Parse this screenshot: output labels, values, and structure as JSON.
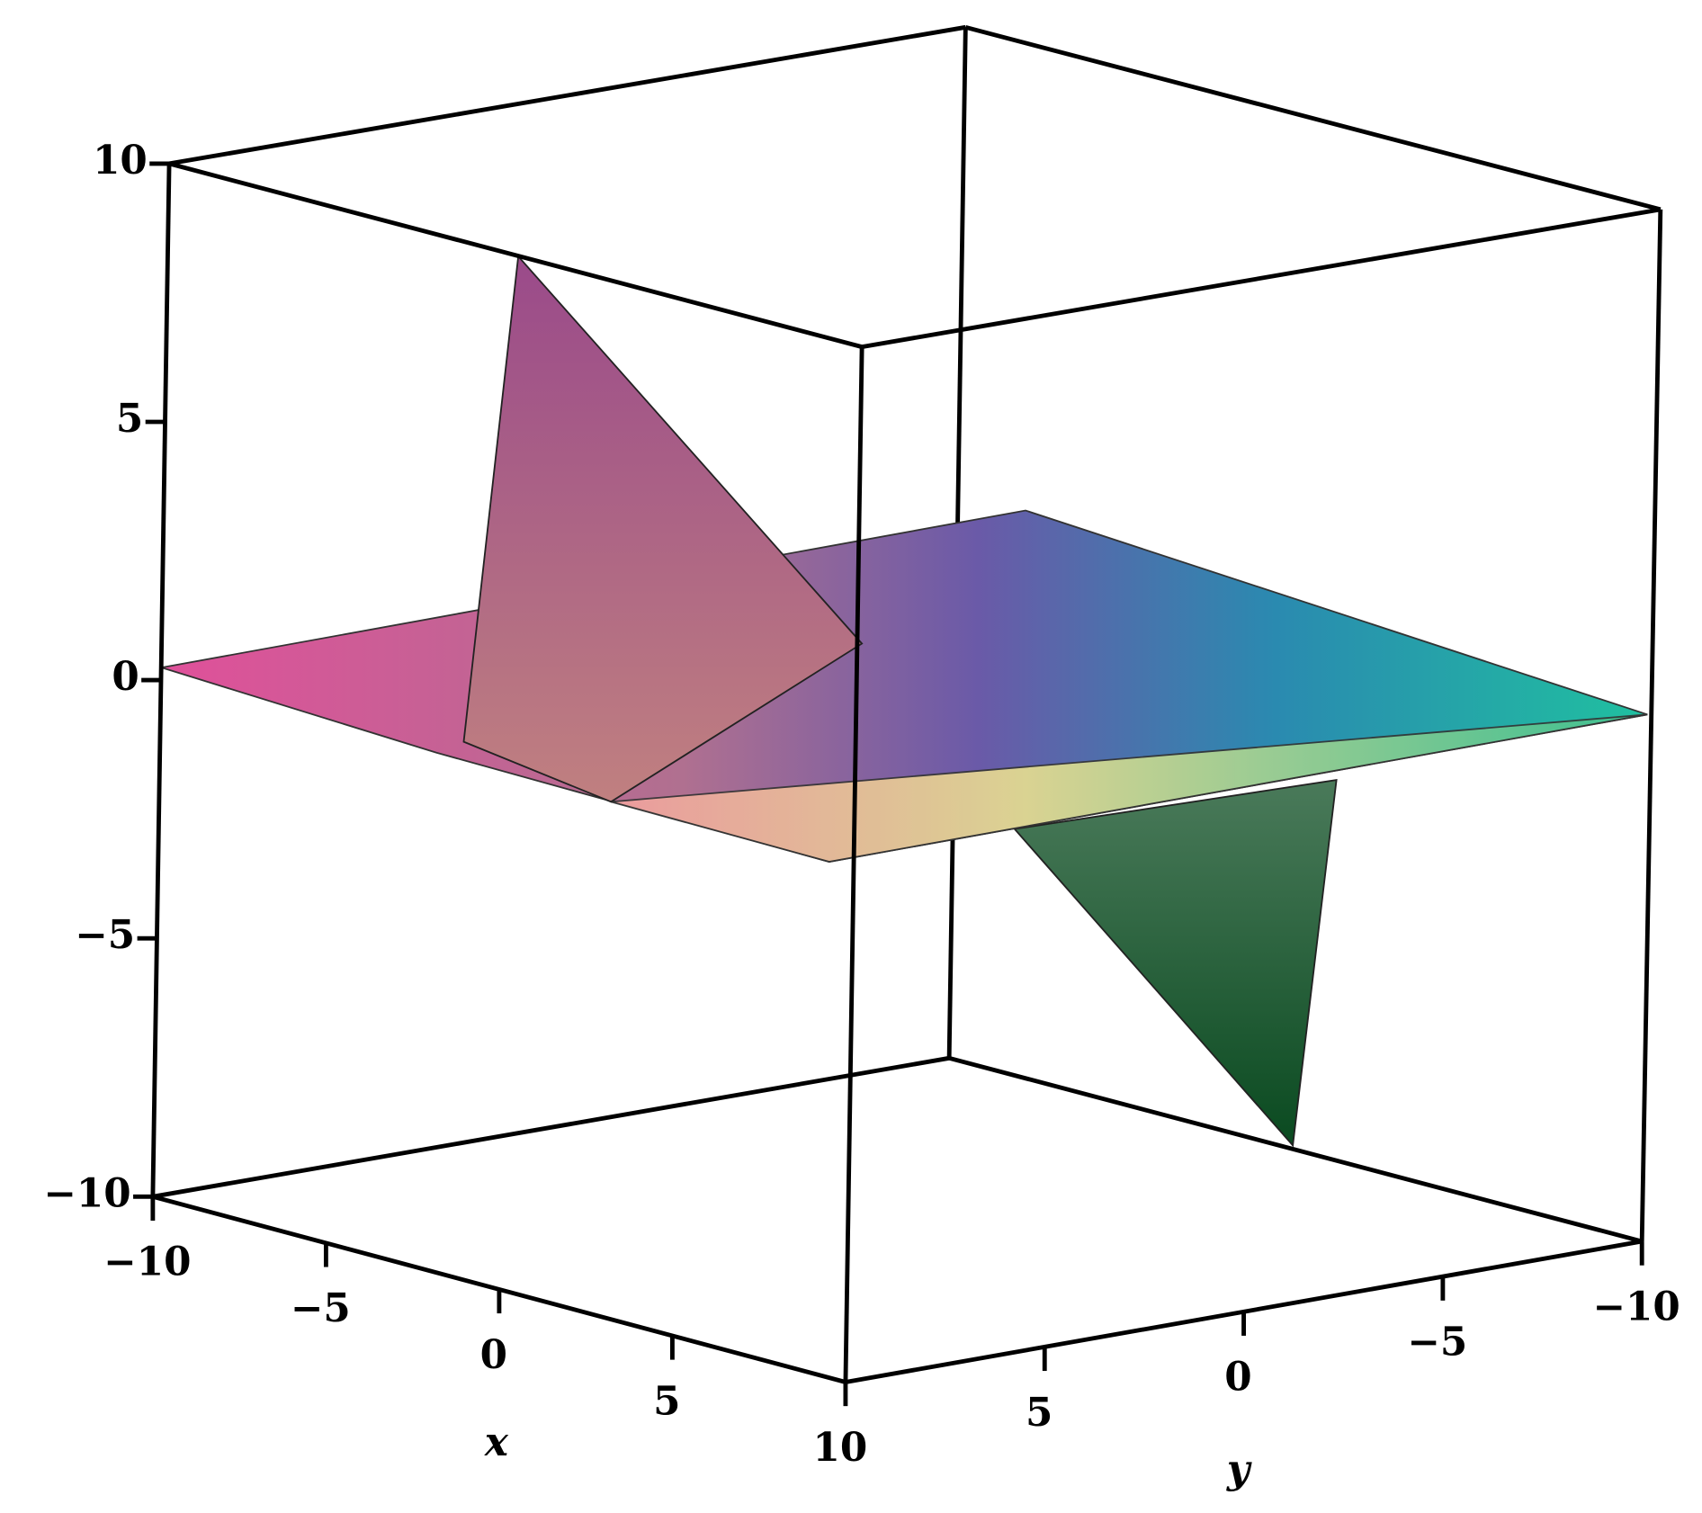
{
  "chart_data": {
    "type": "surface",
    "xlabel": "x",
    "ylabel": "y",
    "xlim": [
      -10,
      10
    ],
    "xticks": [
      {
        "value": -10,
        "label": "−10"
      },
      {
        "value": -5,
        "label": "−5"
      },
      0,
      5,
      10
    ],
    "ylim": [
      -10,
      10
    ],
    "yticks": [
      {
        "value": -10,
        "label": "−10"
      },
      {
        "value": -5,
        "label": "−5"
      },
      0,
      5
    ],
    "zlim": [
      -10,
      10
    ],
    "zticks": [
      {
        "value": -10,
        "label": "−10"
      },
      {
        "value": -5,
        "label": "−5"
      },
      0,
      5,
      10
    ]
  }
}
